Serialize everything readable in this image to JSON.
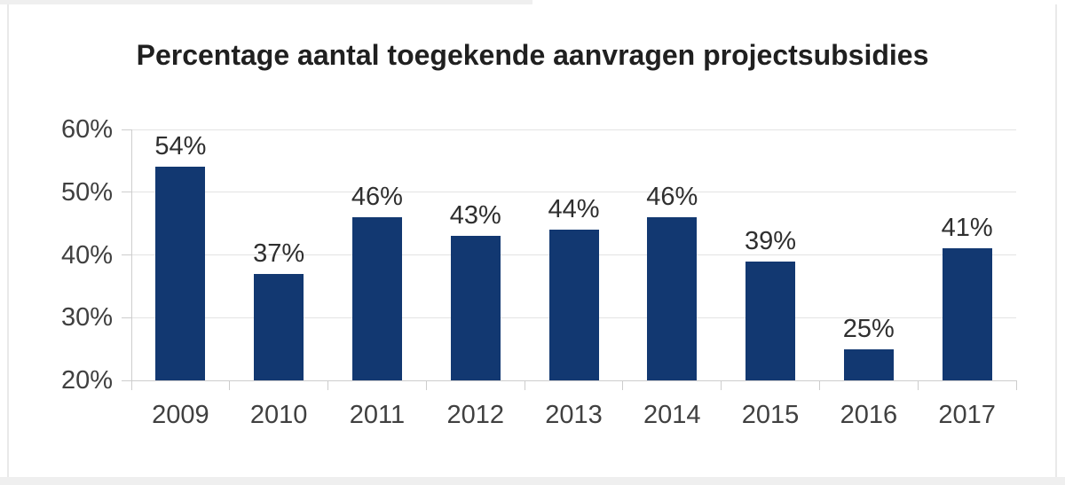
{
  "page": {
    "background": "#ffffff",
    "edge_color": "#efefef",
    "line_color": "#e9e9e9"
  },
  "chart_data": {
    "type": "bar",
    "title": "Percentage aantal toegekende aanvragen projectsubsidies",
    "categories": [
      "2009",
      "2010",
      "2011",
      "2012",
      "2013",
      "2014",
      "2015",
      "2016",
      "2017"
    ],
    "values": [
      54,
      37,
      46,
      43,
      44,
      46,
      39,
      25,
      41
    ],
    "data_labels": [
      "54%",
      "37%",
      "46%",
      "43%",
      "44%",
      "46%",
      "39%",
      "25%",
      "41%"
    ],
    "xlabel": "",
    "ylabel": "",
    "ylim": [
      20,
      60
    ],
    "yticks": [
      60,
      50,
      40,
      30,
      20
    ],
    "ytick_labels": [
      "60%",
      "50%",
      "40%",
      "30%",
      "20%"
    ],
    "grid": "horizontal",
    "legend": false,
    "colors": {
      "bar": "#123871",
      "title_text": "#202020",
      "axis_text": "#404040",
      "data_label_text": "#2f2f2f",
      "gridline": "#e3e3e3",
      "axis_line": "#cdcdcd"
    }
  }
}
